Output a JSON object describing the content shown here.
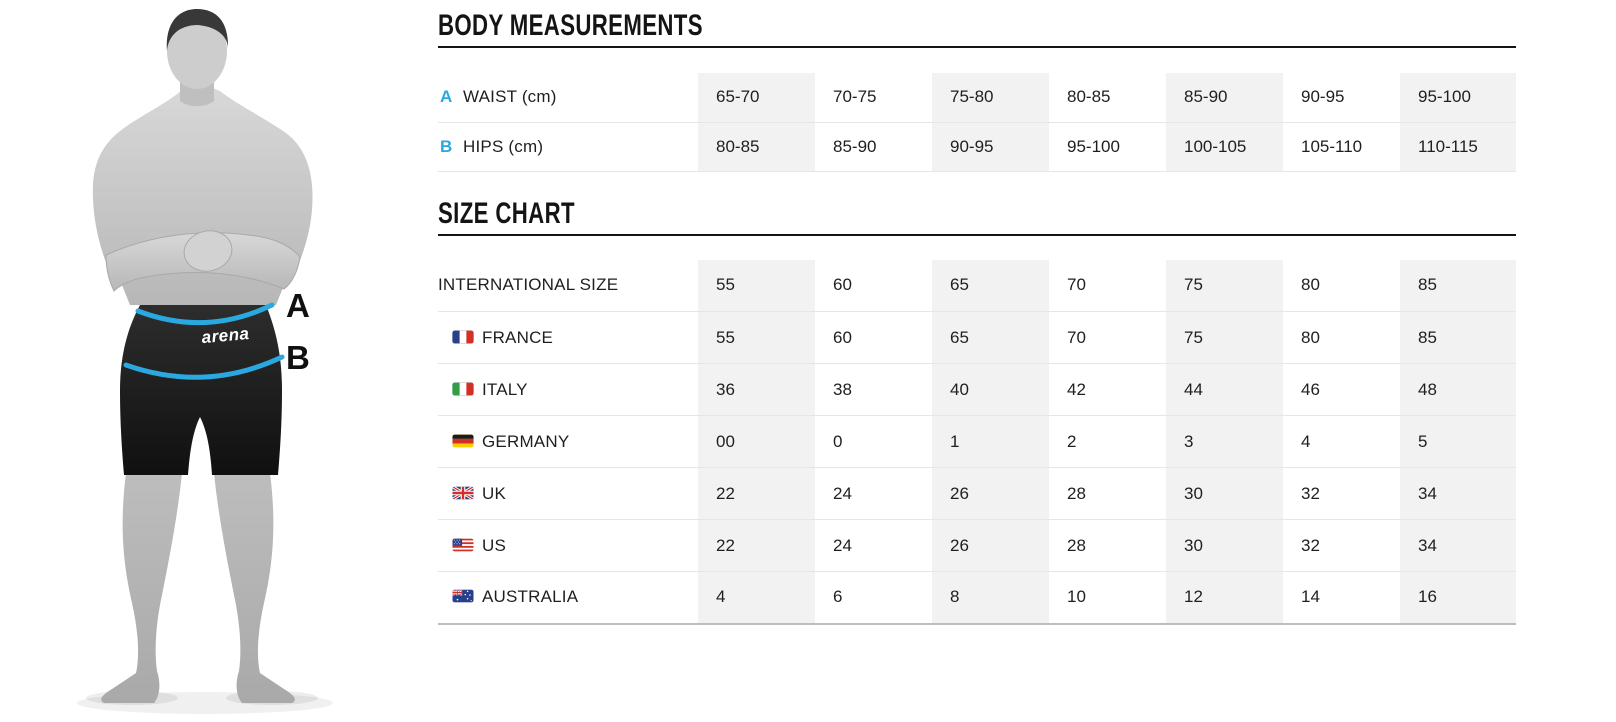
{
  "colors": {
    "accent": "#29a9e0",
    "shade": "#f2f2f2"
  },
  "figure": {
    "brand": "arena",
    "waist_marker": "A",
    "hips_marker": "B"
  },
  "body_measurements": {
    "title": "BODY MEASUREMENTS",
    "rows": [
      {
        "marker": "A",
        "label": "WAIST (cm)",
        "values": [
          "65-70",
          "70-75",
          "75-80",
          "80-85",
          "85-90",
          "90-95",
          "95-100"
        ]
      },
      {
        "marker": "B",
        "label": "HIPS (cm)",
        "values": [
          "80-85",
          "85-90",
          "90-95",
          "95-100",
          "100-105",
          "105-110",
          "110-115"
        ]
      }
    ]
  },
  "size_chart": {
    "title": "SIZE CHART",
    "rows": [
      {
        "label": "INTERNATIONAL SIZE",
        "flag": null,
        "values": [
          "55",
          "60",
          "65",
          "70",
          "75",
          "80",
          "85"
        ]
      },
      {
        "label": "FRANCE",
        "flag": "france",
        "values": [
          "55",
          "60",
          "65",
          "70",
          "75",
          "80",
          "85"
        ]
      },
      {
        "label": "ITALY",
        "flag": "italy",
        "values": [
          "36",
          "38",
          "40",
          "42",
          "44",
          "46",
          "48"
        ]
      },
      {
        "label": "GERMANY",
        "flag": "germany",
        "values": [
          "00",
          "0",
          "1",
          "2",
          "3",
          "4",
          "5"
        ]
      },
      {
        "label": "UK",
        "flag": "uk",
        "values": [
          "22",
          "24",
          "26",
          "28",
          "30",
          "32",
          "34"
        ]
      },
      {
        "label": "US",
        "flag": "us",
        "values": [
          "22",
          "24",
          "26",
          "28",
          "30",
          "32",
          "34"
        ]
      },
      {
        "label": "AUSTRALIA",
        "flag": "australia",
        "values": [
          "4",
          "6",
          "8",
          "10",
          "12",
          "14",
          "16"
        ]
      }
    ]
  }
}
